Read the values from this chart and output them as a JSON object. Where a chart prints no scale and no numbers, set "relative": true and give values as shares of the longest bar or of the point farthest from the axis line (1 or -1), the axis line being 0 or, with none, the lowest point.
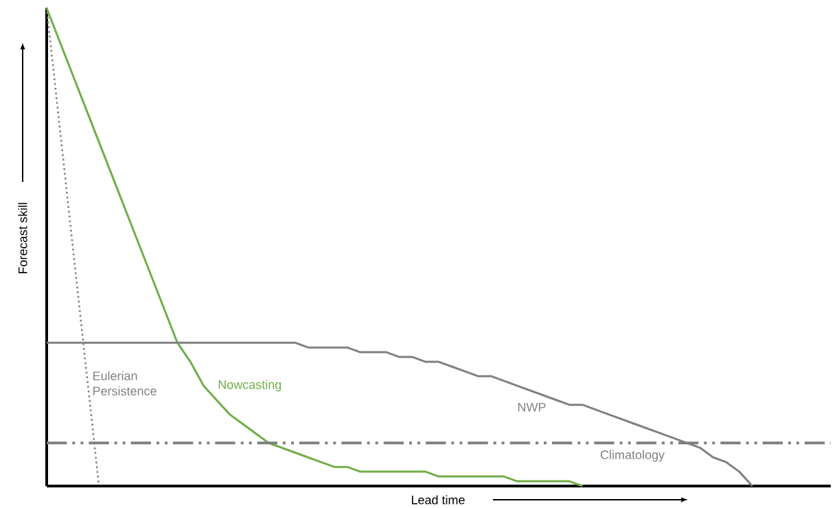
{
  "chart_data": {
    "type": "line",
    "relative": true,
    "xlabel": "Lead time",
    "ylabel": "Forecast skill",
    "categories": [
      null,
      null,
      null,
      null,
      null,
      null,
      null,
      null,
      null,
      null,
      null,
      null,
      null,
      null,
      null,
      null,
      null,
      null,
      null,
      null,
      null,
      null,
      null,
      null,
      null,
      null,
      null,
      null,
      null,
      null,
      null,
      null,
      null,
      null,
      null,
      null,
      null,
      null,
      null,
      null,
      null,
      null,
      null,
      null,
      null,
      null,
      null,
      null,
      null,
      null,
      null,
      null,
      null,
      null,
      null,
      null,
      null,
      null,
      null,
      null,
      null
    ],
    "series": [
      {
        "name": "Eulerian Persistence",
        "color": "#808080",
        "line_style": "dotted",
        "values": [
          1.0,
          0.75,
          0.5,
          0.25,
          0.0,
          null,
          null,
          null,
          null,
          null,
          null,
          null,
          null,
          null,
          null,
          null,
          null,
          null,
          null,
          null,
          null,
          null,
          null,
          null,
          null,
          null,
          null,
          null,
          null,
          null,
          null,
          null,
          null,
          null,
          null,
          null,
          null,
          null,
          null,
          null,
          null,
          null,
          null,
          null,
          null,
          null,
          null,
          null,
          null,
          null,
          null,
          null,
          null,
          null,
          null,
          null,
          null,
          null,
          null,
          null,
          null
        ]
      },
      {
        "name": "Nowcasting",
        "color": "#70ad47",
        "line_style": "solid",
        "values": [
          1.0,
          0.93,
          0.86,
          0.79,
          0.72,
          0.65,
          0.58,
          0.51,
          0.44,
          0.37,
          0.3,
          0.26,
          0.21,
          0.18,
          0.15,
          0.13,
          0.11,
          0.09,
          0.08,
          0.07,
          0.06,
          0.05,
          0.04,
          0.04,
          0.03,
          0.03,
          0.03,
          0.03,
          0.03,
          0.03,
          0.02,
          0.02,
          0.02,
          0.02,
          0.02,
          0.02,
          0.01,
          0.01,
          0.01,
          0.01,
          0.01,
          0.0,
          null,
          null,
          null,
          null,
          null,
          null,
          null,
          null,
          null,
          null,
          null,
          null,
          null,
          null,
          null,
          null,
          null,
          null,
          null
        ]
      },
      {
        "name": "NWP",
        "color": "#808080",
        "line_style": "solid",
        "values": [
          0.3,
          0.3,
          0.3,
          0.3,
          0.3,
          0.3,
          0.3,
          0.3,
          0.3,
          0.3,
          0.3,
          0.3,
          0.3,
          0.3,
          0.3,
          0.3,
          0.3,
          0.3,
          0.3,
          0.3,
          0.29,
          0.29,
          0.29,
          0.29,
          0.28,
          0.28,
          0.28,
          0.27,
          0.27,
          0.26,
          0.26,
          0.25,
          0.24,
          0.23,
          0.23,
          0.22,
          0.21,
          0.2,
          0.19,
          0.18,
          0.17,
          0.17,
          0.16,
          0.15,
          0.14,
          0.13,
          0.12,
          0.11,
          0.1,
          0.09,
          0.08,
          0.06,
          0.05,
          0.03,
          0.0,
          null,
          null,
          null,
          null,
          null,
          null
        ]
      }
    ],
    "ref_lines": [
      {
        "axis": "y",
        "value": 0.09,
        "label": "Climatology",
        "color": "#808080",
        "line_style": "dashed"
      }
    ]
  }
}
